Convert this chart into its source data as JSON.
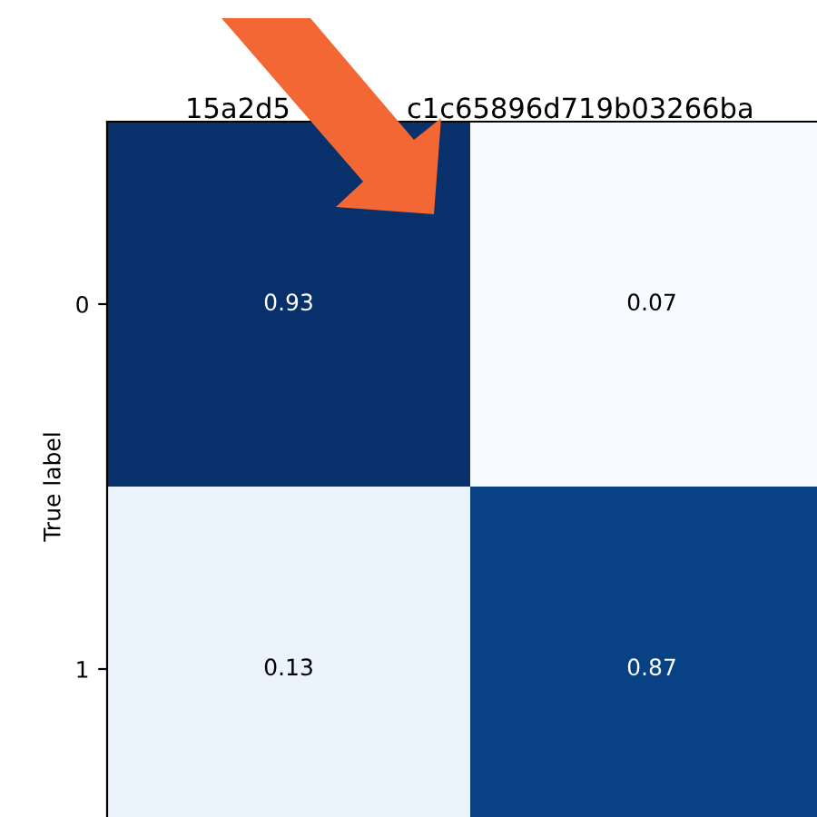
{
  "chart_data": {
    "type": "heatmap",
    "annotations": [
      "15a2d5",
      "c1c65896d719b03266ba"
    ],
    "ylabel": "True label",
    "categories": [
      null,
      null
    ],
    "y_categories": [
      "0",
      "1"
    ],
    "cells": [
      [
        0.93,
        0.07
      ],
      [
        0.13,
        0.87
      ]
    ],
    "data_labels": true,
    "tick_labels": "y"
  }
}
